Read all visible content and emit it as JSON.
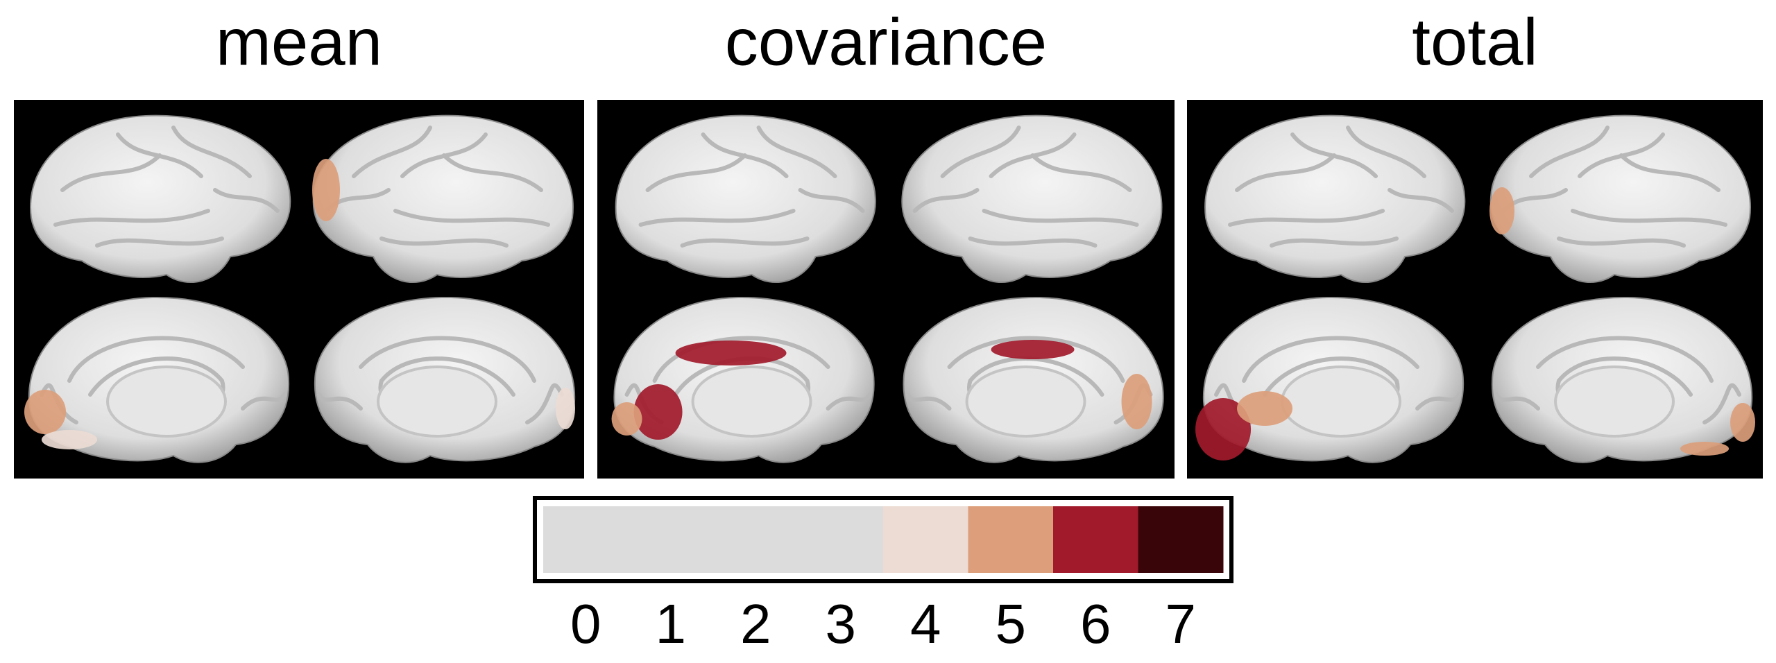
{
  "panels": [
    {
      "title": "mean"
    },
    {
      "title": "covariance"
    },
    {
      "title": "total"
    }
  ],
  "colorbar": {
    "segments": [
      {
        "label": "0",
        "color": "#dcdcdc"
      },
      {
        "label": "1",
        "color": "#dcdcdc"
      },
      {
        "label": "2",
        "color": "#dcdcdc"
      },
      {
        "label": "3",
        "color": "#dcdcdc"
      },
      {
        "label": "4",
        "color": "#ecdcd4"
      },
      {
        "label": "5",
        "color": "#dc9e7b"
      },
      {
        "label": "6",
        "color": "#a11a2b"
      },
      {
        "label": "7",
        "color": "#3a0509"
      }
    ]
  }
}
